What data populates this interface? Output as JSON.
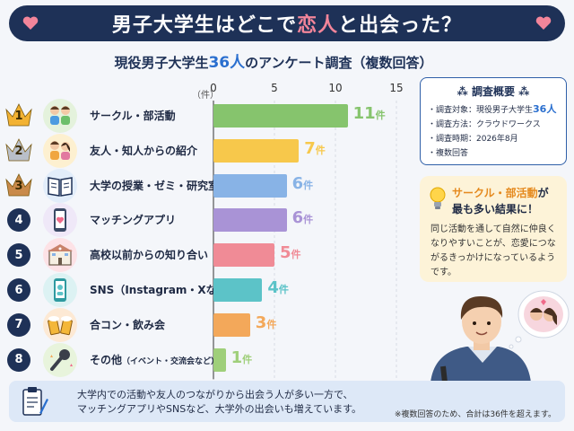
{
  "header": {
    "title_pre": "男子大学生はどこで",
    "title_hl": "恋人",
    "title_post": "と出会った？"
  },
  "subtitle": {
    "pre": "現役男子大学生",
    "num": "36人",
    "post": "のアンケート調査（複数回答）"
  },
  "chart_data": {
    "type": "bar",
    "orientation": "horizontal",
    "unit_label": "（件）",
    "xlim": [
      0,
      15
    ],
    "ticks": [
      0,
      5,
      10,
      15
    ],
    "categories": [
      "サークル・部活動",
      "友人・知人からの紹介",
      "大学の授業・ゼミ・研究室",
      "マッチングアプリ",
      "高校以前からの知り合い",
      "SNS（Instagram・Xなど）",
      "合コン・飲み会",
      "その他"
    ],
    "category_notes": [
      "",
      "",
      "",
      "",
      "",
      "",
      "",
      "（イベント・交流会など）"
    ],
    "ranks": [
      "1",
      "2",
      "3",
      "4",
      "5",
      "6",
      "7",
      "8"
    ],
    "values": [
      11,
      7,
      6,
      6,
      5,
      4,
      3,
      1
    ],
    "value_unit": "件",
    "colors": [
      "#86c46d",
      "#f7c84b",
      "#88b3e6",
      "#a993d6",
      "#f08b96",
      "#5cc3c8",
      "#f3a85a",
      "#9fcf7a"
    ],
    "icons": [
      "students-icon",
      "introduction-icon",
      "book-icon",
      "smartphone-heart-icon",
      "school-building-icon",
      "sns-phone-icon",
      "beer-toast-icon",
      "microphone-icon"
    ]
  },
  "overview": {
    "title": "調査概要",
    "items": [
      {
        "label": "・調査対象：現役男子大学生",
        "num": "36人"
      },
      {
        "label": "・調査方法：クラウドワークス",
        "num": ""
      },
      {
        "label": "・調査時期：2026年8月",
        "num": ""
      },
      {
        "label": "・複数回答",
        "num": ""
      }
    ]
  },
  "callout": {
    "title_hl": "サークル・部活動",
    "title_post1": "が",
    "title_line2": "最も多い結果に！",
    "body": "同じ活動を通して自然に仲良くなりやすいことが、恋愛につながるきっかけになっているようです。"
  },
  "footer": {
    "line1": "大学内での活動や友人のつながりから出会う人が多い一方で、",
    "line2": "マッチングアプリやSNSなど、大学外の出会いも増えています。",
    "note": "※複数回答のため、合計は36件を超えます。"
  },
  "colors": {
    "navy": "#1e3157",
    "pink": "#f3859a",
    "accent_blue": "#2a6fcf",
    "gold": "#f2b233",
    "silver": "#b9bfc9",
    "bronze": "#c98a4b"
  }
}
